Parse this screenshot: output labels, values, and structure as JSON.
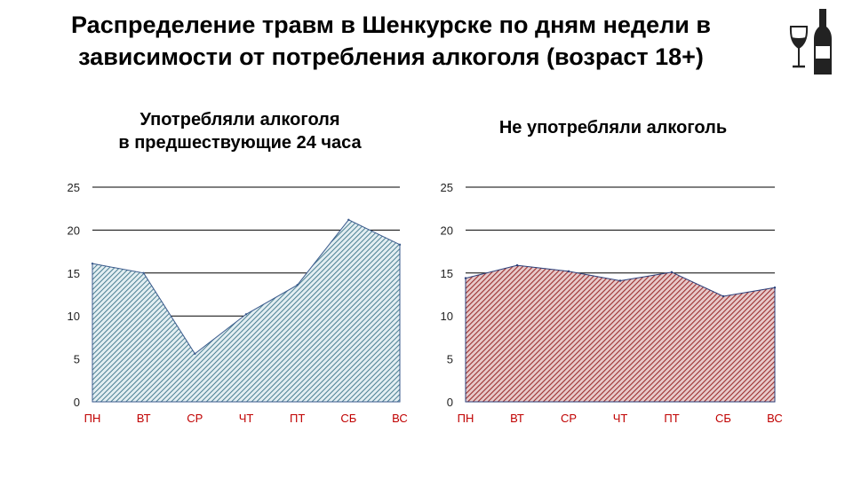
{
  "title": {
    "line1": "Распределение травм в Шенкурске по дням недели в",
    "line2": "зависимости от потребления алкоголя (возраст 18+)"
  },
  "icon": "wine-bottle-and-glass-icon",
  "colors": {
    "left_fill": "#8fb4c0",
    "left_stroke": "#3a5a8c",
    "right_fill": "#b04a4a",
    "right_stroke": "#2a3f7a",
    "day_label": "#c00000",
    "grid": "#000000"
  },
  "chart_data": [
    {
      "type": "area",
      "title": [
        "Употребляли алкоголя",
        "в предшествующие 24 часа"
      ],
      "categories": [
        "ПН",
        "ВТ",
        "СР",
        "ЧТ",
        "ПТ",
        "СБ",
        "ВС"
      ],
      "values": [
        16.1,
        15.0,
        5.6,
        10.2,
        13.6,
        21.2,
        18.3
      ],
      "ylim": [
        0,
        25
      ],
      "yticks": [
        0,
        5,
        10,
        15,
        20,
        25
      ],
      "grid": true,
      "fill_pattern": "diagonal-hatch-blue"
    },
    {
      "type": "area",
      "title": [
        "Не употребляли алкоголь"
      ],
      "categories": [
        "ПН",
        "ВТ",
        "СР",
        "ЧТ",
        "ПТ",
        "СБ",
        "ВС"
      ],
      "values": [
        14.4,
        15.9,
        15.2,
        14.1,
        15.1,
        12.3,
        13.3
      ],
      "ylim": [
        0,
        25
      ],
      "yticks": [
        0,
        5,
        10,
        15,
        20,
        25
      ],
      "grid": true,
      "fill_pattern": "diagonal-hatch-red"
    }
  ]
}
